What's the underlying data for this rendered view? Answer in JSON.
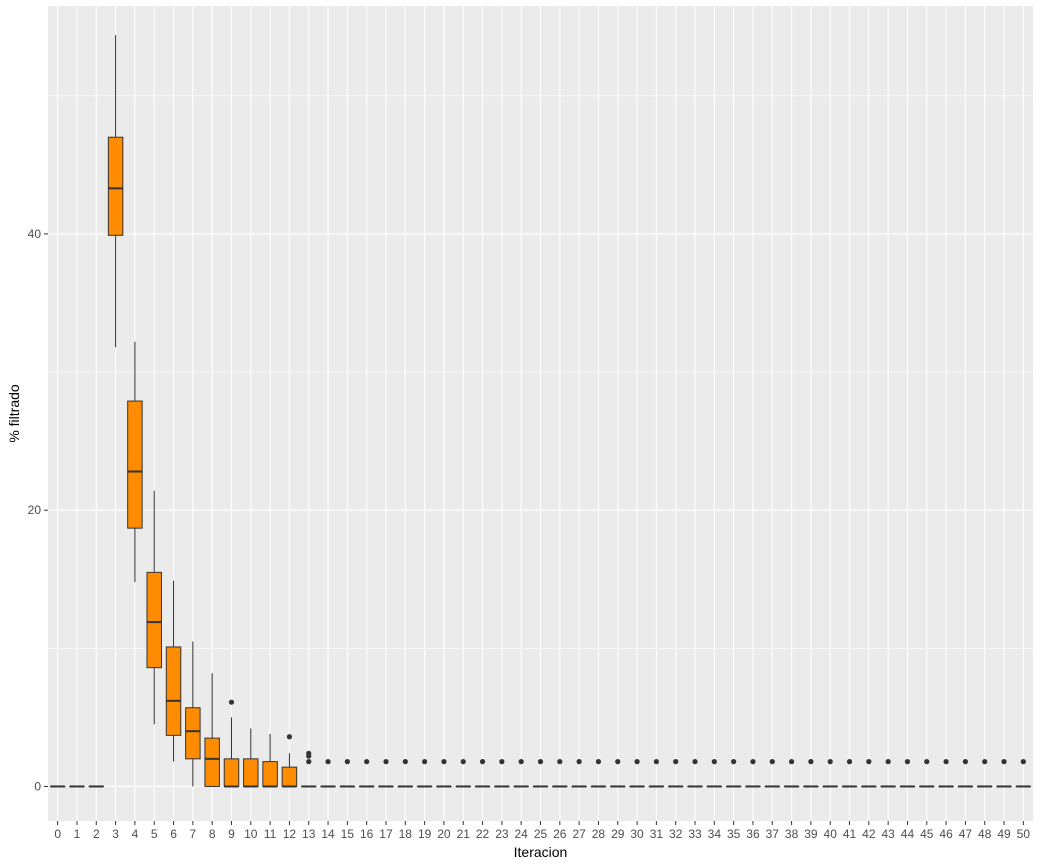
{
  "chart_data": {
    "type": "boxplot",
    "title": "",
    "xlabel": "Iteracion",
    "ylabel": "% filtrado",
    "ylim": [
      -2.5,
      56.5
    ],
    "y_ticks": [
      0,
      20,
      40
    ],
    "categories": [
      "0",
      "1",
      "2",
      "3",
      "4",
      "5",
      "6",
      "7",
      "8",
      "9",
      "10",
      "11",
      "12",
      "13",
      "14",
      "15",
      "16",
      "17",
      "18",
      "19",
      "20",
      "21",
      "22",
      "23",
      "24",
      "25",
      "26",
      "27",
      "28",
      "29",
      "30",
      "31",
      "32",
      "33",
      "34",
      "35",
      "36",
      "37",
      "38",
      "39",
      "40",
      "41",
      "42",
      "43",
      "44",
      "45",
      "46",
      "47",
      "48",
      "49",
      "50"
    ],
    "boxes": [
      {
        "x": "0",
        "lower": 0,
        "q1": 0,
        "median": 0,
        "q3": 0,
        "upper": 0,
        "outliers": []
      },
      {
        "x": "1",
        "lower": 0,
        "q1": 0,
        "median": 0,
        "q3": 0,
        "upper": 0,
        "outliers": []
      },
      {
        "x": "2",
        "lower": 0,
        "q1": 0,
        "median": 0,
        "q3": 0,
        "upper": 0,
        "outliers": []
      },
      {
        "x": "3",
        "lower": 31.8,
        "q1": 39.9,
        "median": 43.3,
        "q3": 47.0,
        "upper": 54.4,
        "outliers": []
      },
      {
        "x": "4",
        "lower": 14.8,
        "q1": 18.7,
        "median": 22.8,
        "q3": 27.9,
        "upper": 32.2,
        "outliers": []
      },
      {
        "x": "5",
        "lower": 4.5,
        "q1": 8.6,
        "median": 11.9,
        "q3": 15.5,
        "upper": 21.4,
        "outliers": []
      },
      {
        "x": "6",
        "lower": 1.8,
        "q1": 3.7,
        "median": 6.2,
        "q3": 10.1,
        "upper": 14.9,
        "outliers": []
      },
      {
        "x": "7",
        "lower": 0,
        "q1": 2.0,
        "median": 4.0,
        "q3": 5.7,
        "upper": 10.5,
        "outliers": []
      },
      {
        "x": "8",
        "lower": 0,
        "q1": 0,
        "median": 2.0,
        "q3": 3.5,
        "upper": 8.2,
        "outliers": []
      },
      {
        "x": "9",
        "lower": 0,
        "q1": 0,
        "median": 0,
        "q3": 2.0,
        "upper": 5.0,
        "outliers": [
          6.1
        ]
      },
      {
        "x": "10",
        "lower": 0,
        "q1": 0,
        "median": 0,
        "q3": 2.0,
        "upper": 4.2,
        "outliers": []
      },
      {
        "x": "11",
        "lower": 0,
        "q1": 0,
        "median": 0,
        "q3": 1.8,
        "upper": 3.8,
        "outliers": []
      },
      {
        "x": "12",
        "lower": 0,
        "q1": 0,
        "median": 0,
        "q3": 1.4,
        "upper": 2.4,
        "outliers": [
          3.6
        ]
      },
      {
        "x": "13",
        "lower": 0,
        "q1": 0,
        "median": 0,
        "q3": 0,
        "upper": 0,
        "outliers": [
          1.8,
          2.2,
          2.4
        ]
      },
      {
        "x": "14",
        "lower": 0,
        "q1": 0,
        "median": 0,
        "q3": 0,
        "upper": 0,
        "outliers": [
          1.8
        ]
      },
      {
        "x": "15",
        "lower": 0,
        "q1": 0,
        "median": 0,
        "q3": 0,
        "upper": 0,
        "outliers": [
          1.8
        ]
      },
      {
        "x": "16",
        "lower": 0,
        "q1": 0,
        "median": 0,
        "q3": 0,
        "upper": 0,
        "outliers": [
          1.8
        ]
      },
      {
        "x": "17",
        "lower": 0,
        "q1": 0,
        "median": 0,
        "q3": 0,
        "upper": 0,
        "outliers": [
          1.8
        ]
      },
      {
        "x": "18",
        "lower": 0,
        "q1": 0,
        "median": 0,
        "q3": 0,
        "upper": 0,
        "outliers": [
          1.8
        ]
      },
      {
        "x": "19",
        "lower": 0,
        "q1": 0,
        "median": 0,
        "q3": 0,
        "upper": 0,
        "outliers": [
          1.8
        ]
      },
      {
        "x": "20",
        "lower": 0,
        "q1": 0,
        "median": 0,
        "q3": 0,
        "upper": 0,
        "outliers": [
          1.8
        ]
      },
      {
        "x": "21",
        "lower": 0,
        "q1": 0,
        "median": 0,
        "q3": 0,
        "upper": 0,
        "outliers": [
          1.8
        ]
      },
      {
        "x": "22",
        "lower": 0,
        "q1": 0,
        "median": 0,
        "q3": 0,
        "upper": 0,
        "outliers": [
          1.8
        ]
      },
      {
        "x": "23",
        "lower": 0,
        "q1": 0,
        "median": 0,
        "q3": 0,
        "upper": 0,
        "outliers": [
          1.8
        ]
      },
      {
        "x": "24",
        "lower": 0,
        "q1": 0,
        "median": 0,
        "q3": 0,
        "upper": 0,
        "outliers": [
          1.8
        ]
      },
      {
        "x": "25",
        "lower": 0,
        "q1": 0,
        "median": 0,
        "q3": 0,
        "upper": 0,
        "outliers": [
          1.8
        ]
      },
      {
        "x": "26",
        "lower": 0,
        "q1": 0,
        "median": 0,
        "q3": 0,
        "upper": 0,
        "outliers": [
          1.8
        ]
      },
      {
        "x": "27",
        "lower": 0,
        "q1": 0,
        "median": 0,
        "q3": 0,
        "upper": 0,
        "outliers": [
          1.8
        ]
      },
      {
        "x": "28",
        "lower": 0,
        "q1": 0,
        "median": 0,
        "q3": 0,
        "upper": 0,
        "outliers": [
          1.8
        ]
      },
      {
        "x": "29",
        "lower": 0,
        "q1": 0,
        "median": 0,
        "q3": 0,
        "upper": 0,
        "outliers": [
          1.8
        ]
      },
      {
        "x": "30",
        "lower": 0,
        "q1": 0,
        "median": 0,
        "q3": 0,
        "upper": 0,
        "outliers": [
          1.8
        ]
      },
      {
        "x": "31",
        "lower": 0,
        "q1": 0,
        "median": 0,
        "q3": 0,
        "upper": 0,
        "outliers": [
          1.8
        ]
      },
      {
        "x": "32",
        "lower": 0,
        "q1": 0,
        "median": 0,
        "q3": 0,
        "upper": 0,
        "outliers": [
          1.8
        ]
      },
      {
        "x": "33",
        "lower": 0,
        "q1": 0,
        "median": 0,
        "q3": 0,
        "upper": 0,
        "outliers": [
          1.8
        ]
      },
      {
        "x": "34",
        "lower": 0,
        "q1": 0,
        "median": 0,
        "q3": 0,
        "upper": 0,
        "outliers": [
          1.8
        ]
      },
      {
        "x": "35",
        "lower": 0,
        "q1": 0,
        "median": 0,
        "q3": 0,
        "upper": 0,
        "outliers": [
          1.8
        ]
      },
      {
        "x": "36",
        "lower": 0,
        "q1": 0,
        "median": 0,
        "q3": 0,
        "upper": 0,
        "outliers": [
          1.8
        ]
      },
      {
        "x": "37",
        "lower": 0,
        "q1": 0,
        "median": 0,
        "q3": 0,
        "upper": 0,
        "outliers": [
          1.8
        ]
      },
      {
        "x": "38",
        "lower": 0,
        "q1": 0,
        "median": 0,
        "q3": 0,
        "upper": 0,
        "outliers": [
          1.8
        ]
      },
      {
        "x": "39",
        "lower": 0,
        "q1": 0,
        "median": 0,
        "q3": 0,
        "upper": 0,
        "outliers": [
          1.8
        ]
      },
      {
        "x": "40",
        "lower": 0,
        "q1": 0,
        "median": 0,
        "q3": 0,
        "upper": 0,
        "outliers": [
          1.8
        ]
      },
      {
        "x": "41",
        "lower": 0,
        "q1": 0,
        "median": 0,
        "q3": 0,
        "upper": 0,
        "outliers": [
          1.8
        ]
      },
      {
        "x": "42",
        "lower": 0,
        "q1": 0,
        "median": 0,
        "q3": 0,
        "upper": 0,
        "outliers": [
          1.8
        ]
      },
      {
        "x": "43",
        "lower": 0,
        "q1": 0,
        "median": 0,
        "q3": 0,
        "upper": 0,
        "outliers": [
          1.8
        ]
      },
      {
        "x": "44",
        "lower": 0,
        "q1": 0,
        "median": 0,
        "q3": 0,
        "upper": 0,
        "outliers": [
          1.8
        ]
      },
      {
        "x": "45",
        "lower": 0,
        "q1": 0,
        "median": 0,
        "q3": 0,
        "upper": 0,
        "outliers": [
          1.8
        ]
      },
      {
        "x": "46",
        "lower": 0,
        "q1": 0,
        "median": 0,
        "q3": 0,
        "upper": 0,
        "outliers": [
          1.8
        ]
      },
      {
        "x": "47",
        "lower": 0,
        "q1": 0,
        "median": 0,
        "q3": 0,
        "upper": 0,
        "outliers": [
          1.8
        ]
      },
      {
        "x": "48",
        "lower": 0,
        "q1": 0,
        "median": 0,
        "q3": 0,
        "upper": 0,
        "outliers": [
          1.8
        ]
      },
      {
        "x": "49",
        "lower": 0,
        "q1": 0,
        "median": 0,
        "q3": 0,
        "upper": 0,
        "outliers": [
          1.8
        ]
      },
      {
        "x": "50",
        "lower": 0,
        "q1": 0,
        "median": 0,
        "q3": 0,
        "upper": 0,
        "outliers": [
          1.8
        ]
      }
    ],
    "grid": true,
    "legend": "none",
    "colors": {
      "box_fill": "#ff8c00",
      "box_line": "#333333",
      "panel_background": "#ebebeb",
      "grid_major": "#ffffff"
    }
  }
}
